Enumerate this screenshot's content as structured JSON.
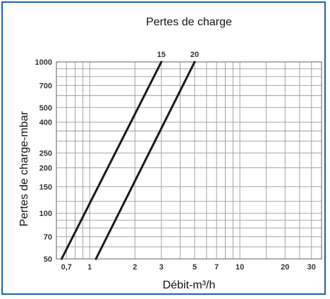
{
  "chart_data": {
    "type": "line",
    "title": "Pertes de charge",
    "xlabel": "Débit-m³/h",
    "ylabel": "Pertes de charge-mbar",
    "x_scale": "log",
    "y_scale": "log",
    "xlim": [
      0.6,
      35
    ],
    "ylim": [
      50,
      1000
    ],
    "grid": true,
    "x_ticks": [
      0.7,
      1,
      2,
      3,
      5,
      7,
      10,
      20,
      30
    ],
    "x_tick_labels": [
      "0,7",
      "1",
      "2",
      "3",
      "5",
      "7",
      "10",
      "20",
      "30"
    ],
    "y_ticks": [
      50,
      70,
      100,
      150,
      200,
      250,
      400,
      500,
      700,
      1000
    ],
    "y_tick_labels": [
      "50",
      "70",
      "100",
      "150",
      "200",
      "250",
      "400",
      "500",
      "700",
      "1000"
    ],
    "x_minor_grid": [
      0.6,
      0.8,
      0.9,
      4,
      6,
      8,
      9,
      15,
      25
    ],
    "y_minor_grid": [
      60,
      80,
      90,
      120,
      300,
      350,
      600,
      800,
      900
    ],
    "series": [
      {
        "name": "15",
        "x": [
          0.65,
          3.0
        ],
        "y": [
          50,
          1000
        ]
      },
      {
        "name": "20",
        "x": [
          1.1,
          5.0
        ],
        "y": [
          50,
          1000
        ]
      }
    ]
  },
  "colors": {
    "frame": "#1f5fa8",
    "grid": "#9a9a9a",
    "line": "#1a1a1a"
  }
}
